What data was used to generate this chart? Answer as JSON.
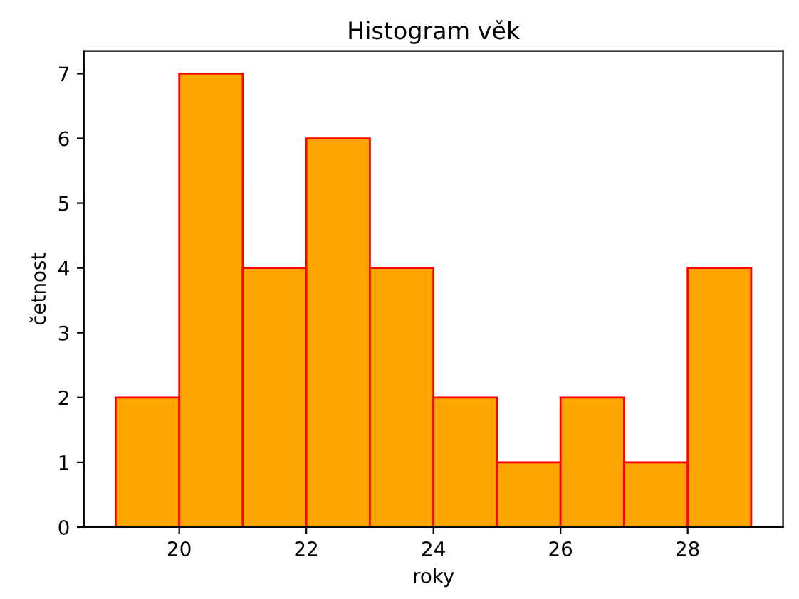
{
  "chart_data": {
    "type": "histogram",
    "title": "Histogram věk",
    "xlabel": "roky",
    "ylabel": "četnost",
    "bins": [
      19,
      20,
      21,
      22,
      23,
      24,
      25,
      26,
      27,
      28,
      29
    ],
    "values": [
      2,
      7,
      4,
      6,
      4,
      2,
      1,
      2,
      1,
      4
    ],
    "color": "#ffa500",
    "xlim": [
      18.5,
      29.5
    ],
    "xticks": [
      20,
      22,
      24,
      26,
      28
    ],
    "ylim": [
      0,
      7.35
    ],
    "yticks": [
      0,
      1,
      2,
      3,
      4,
      5,
      6,
      7
    ],
    "grid": false
  }
}
